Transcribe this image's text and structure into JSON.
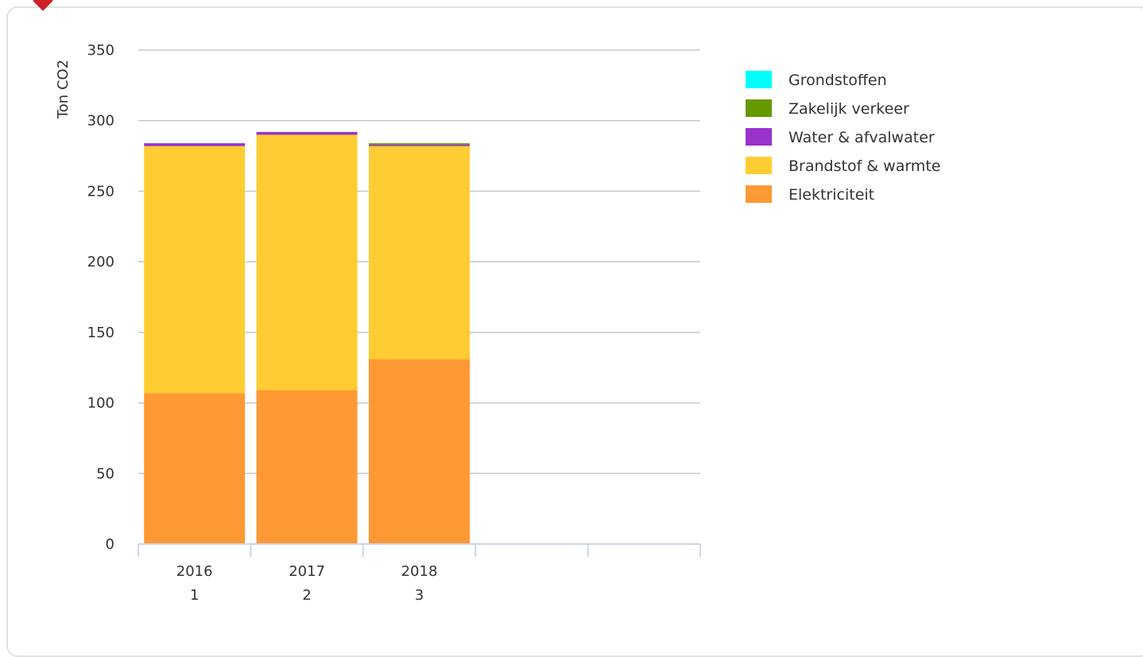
{
  "colors": {
    "gridline": "#c8c8c8",
    "axis": "#ccd6eb",
    "text": "#333333",
    "accent_marker": "#cc2229"
  },
  "chart_data": {
    "type": "bar",
    "stacked": true,
    "title": "",
    "ylabel": "Ton CO2",
    "xlabel": "",
    "ylim": [
      0,
      350
    ],
    "yticks": [
      0,
      50,
      100,
      150,
      200,
      250,
      300,
      350
    ],
    "grid": true,
    "legend_position": "top-right",
    "slots": 5,
    "categories": [
      {
        "year": "2016",
        "index": "1"
      },
      {
        "year": "2017",
        "index": "2"
      },
      {
        "year": "2018",
        "index": "3"
      }
    ],
    "series": [
      {
        "name": "Elektriciteit",
        "color": "#ff9933",
        "values": [
          107,
          109,
          131
        ]
      },
      {
        "name": "Brandstof & warmte",
        "color": "#ffcc33",
        "values": [
          175,
          181,
          151
        ]
      },
      {
        "name": "Water & afvalwater",
        "color": "#9933cc",
        "values": [
          2,
          2,
          1
        ]
      },
      {
        "name": "Zakelijk verkeer",
        "color": "#669900",
        "values": [
          0,
          0,
          1
        ]
      },
      {
        "name": "Grondstoffen",
        "color": "#00ffff",
        "values": [
          0,
          0,
          0
        ]
      }
    ],
    "legend_order": [
      "Grondstoffen",
      "Zakelijk verkeer",
      "Water & afvalwater",
      "Brandstof & warmte",
      "Elektriciteit"
    ]
  }
}
